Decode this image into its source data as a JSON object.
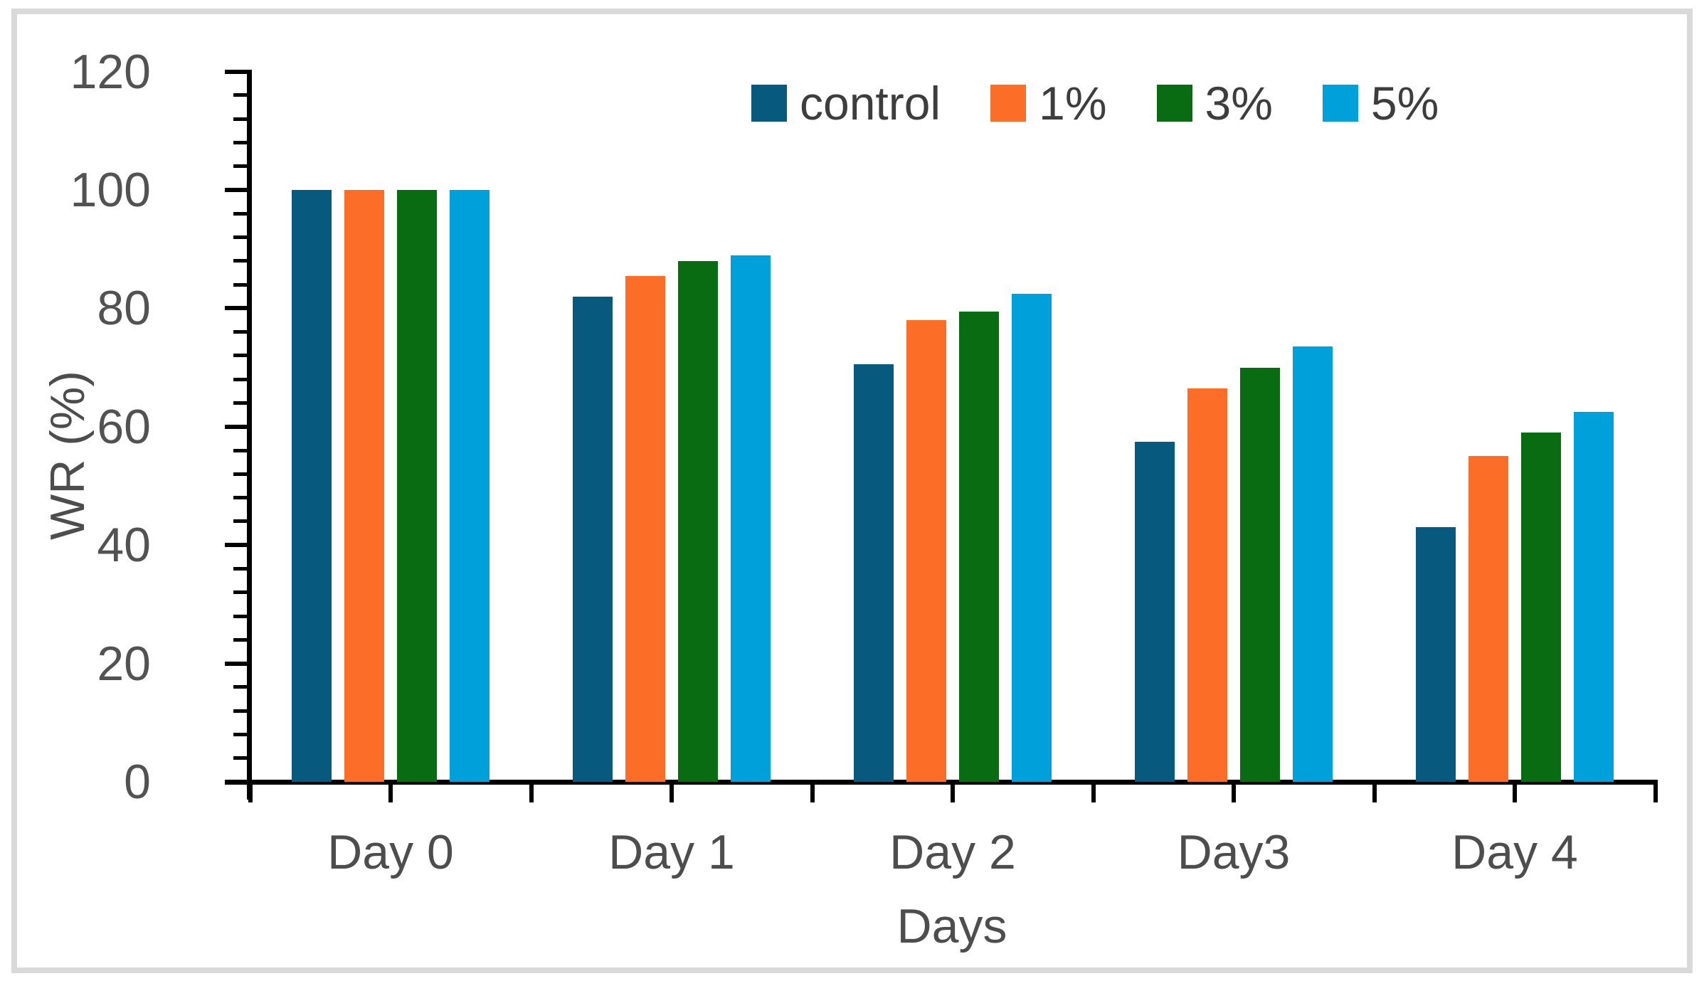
{
  "chart_data": {
    "type": "bar",
    "categories": [
      "Day 0",
      "Day 1",
      "Day 2",
      "Day3",
      "Day 4"
    ],
    "series": [
      {
        "name": "control",
        "color": "#075a7e",
        "values": [
          100,
          82,
          70.5,
          57.5,
          43
        ]
      },
      {
        "name": "1%",
        "color": "#fc6e27",
        "values": [
          100,
          85.5,
          78,
          66.5,
          55
        ]
      },
      {
        "name": "3%",
        "color": "#0a6c12",
        "values": [
          100,
          88,
          79.5,
          70,
          59
        ]
      },
      {
        "name": "5%",
        "color": "#00a1da",
        "values": [
          100,
          89,
          82.5,
          73.5,
          62.5
        ]
      }
    ],
    "xlabel": "Days",
    "ylabel": "WR (%)",
    "ylim": [
      0,
      120
    ],
    "y_major_ticks": [
      0,
      20,
      40,
      60,
      80,
      100,
      120
    ],
    "y_minor_step": 4,
    "x_minor_ticks_per_category": 2,
    "grid": false,
    "legend_position": "top-right-inside"
  }
}
